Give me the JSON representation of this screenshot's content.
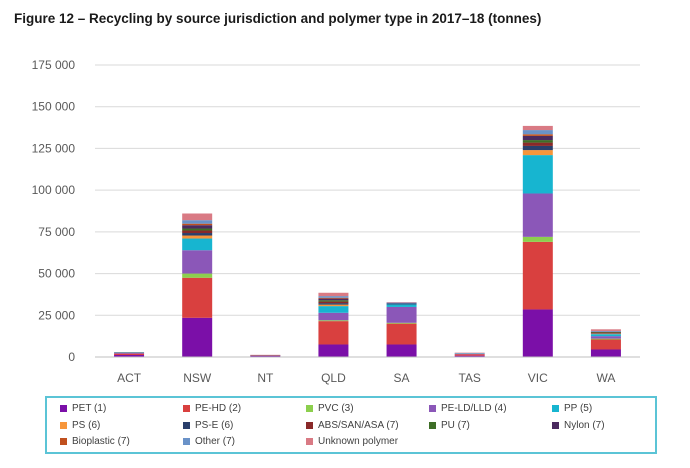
{
  "title": "Figure 12 – Recycling by source jurisdiction and polymer type in 2017–18 (tonnes)",
  "chart_data": {
    "type": "bar",
    "stacked": true,
    "title": "Figure 12 – Recycling by source jurisdiction and polymer type in 2017–18 (tonnes)",
    "xlabel": "",
    "ylabel": "",
    "ylim": [
      0,
      175000
    ],
    "yticks": [
      0,
      25000,
      50000,
      75000,
      100000,
      125000,
      150000,
      175000
    ],
    "ytick_labels": [
      "0",
      "25 000",
      "50 000",
      "75 000",
      "100 000",
      "125 000",
      "150 000",
      "175 000"
    ],
    "grid": true,
    "legend_position": "bottom",
    "categories": [
      "ACT",
      "NSW",
      "NT",
      "QLD",
      "SA",
      "TAS",
      "VIC",
      "WA"
    ],
    "series": [
      {
        "name": "PET (1)",
        "color": "#7b0fa8",
        "values": [
          1200,
          23500,
          600,
          7500,
          7500,
          800,
          28500,
          4500
        ]
      },
      {
        "name": "PE-HD (2)",
        "color": "#d9403f",
        "values": [
          800,
          24000,
          300,
          14000,
          12500,
          900,
          40500,
          6000
        ]
      },
      {
        "name": "PVC (3)",
        "color": "#8ccf4d",
        "values": [
          0,
          2500,
          0,
          500,
          500,
          0,
          3000,
          500
        ]
      },
      {
        "name": "PE-LD/LLD (4)",
        "color": "#8b57b8",
        "values": [
          400,
          14000,
          200,
          4500,
          9500,
          300,
          26000,
          1500
        ]
      },
      {
        "name": "PP (5)",
        "color": "#17b5d0",
        "values": [
          300,
          7000,
          100,
          4000,
          1500,
          300,
          23000,
          1200
        ]
      },
      {
        "name": "PS (6)",
        "color": "#f7963b",
        "values": [
          0,
          1800,
          0,
          900,
          0,
          0,
          3000,
          300
        ]
      },
      {
        "name": "PS-E (6)",
        "color": "#2a3f6b",
        "values": [
          0,
          1500,
          0,
          900,
          600,
          0,
          2500,
          300
        ]
      },
      {
        "name": "ABS/SAN/ASA (7)",
        "color": "#8a2929",
        "values": [
          0,
          1500,
          0,
          900,
          0,
          0,
          2000,
          200
        ]
      },
      {
        "name": "PU (7)",
        "color": "#3e6e27",
        "values": [
          0,
          1200,
          0,
          800,
          0,
          0,
          1500,
          200
        ]
      },
      {
        "name": "Nylon (7)",
        "color": "#4b2a5f",
        "values": [
          0,
          2000,
          0,
          1000,
          0,
          0,
          2500,
          300
        ]
      },
      {
        "name": "Bioplastic (7)",
        "color": "#c0501e",
        "values": [
          0,
          900,
          0,
          500,
          0,
          0,
          1000,
          100
        ]
      },
      {
        "name": "Other (7)",
        "color": "#6a92c8",
        "values": [
          0,
          2100,
          0,
          1000,
          500,
          0,
          2500,
          500
        ]
      },
      {
        "name": "Unknown polymer",
        "color": "#d97a84",
        "values": [
          300,
          4000,
          100,
          2000,
          300,
          300,
          2500,
          1000
        ]
      }
    ]
  }
}
